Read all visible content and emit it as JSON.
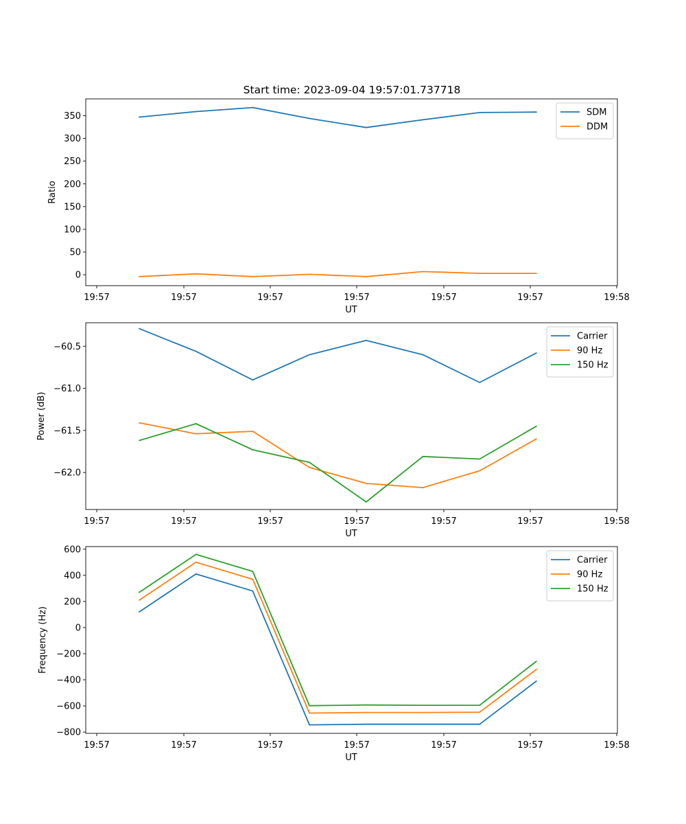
{
  "figure_title": "Start time: 2023-09-04 19:57:01.737718",
  "chart_data": [
    {
      "type": "line",
      "title": "Start time: 2023-09-04 19:57:01.737718",
      "xlabel": "UT",
      "ylabel": "Ratio",
      "x_tick_labels": [
        "19:57",
        "19:57",
        "19:57",
        "19:57",
        "19:57",
        "19:57",
        "19:58"
      ],
      "y_ticks": [
        0,
        50,
        100,
        150,
        200,
        250,
        300,
        350
      ],
      "y_tick_labels": [
        "0",
        "50",
        "100",
        "150",
        "200",
        "250",
        "300",
        "350"
      ],
      "ylim": [
        -24,
        387
      ],
      "x": [
        0,
        1,
        2,
        3,
        4,
        5,
        6,
        7
      ],
      "series": [
        {
          "name": "SDM",
          "color": "#1f77b4",
          "values": [
            347,
            359,
            368,
            344,
            324,
            341,
            357,
            358
          ]
        },
        {
          "name": "DDM",
          "color": "#ff7f0e",
          "values": [
            -4,
            2,
            -4,
            1,
            -4,
            7,
            3,
            3
          ]
        }
      ],
      "legend_position": "top-right"
    },
    {
      "type": "line",
      "title": "",
      "xlabel": "UT",
      "ylabel": "Power (dB)",
      "x_tick_labels": [
        "19:57",
        "19:57",
        "19:57",
        "19:57",
        "19:57",
        "19:57",
        "19:58"
      ],
      "y_ticks": [
        -62.0,
        -61.5,
        -61.0,
        -60.5
      ],
      "y_tick_labels": [
        "−62.0",
        "−61.5",
        "−61.0",
        "−60.5"
      ],
      "ylim": [
        -62.44,
        -60.22
      ],
      "x": [
        0,
        1,
        2,
        3,
        4,
        5,
        6,
        7
      ],
      "series": [
        {
          "name": "Carrier",
          "color": "#1f77b4",
          "values": [
            -60.29,
            -60.56,
            -60.9,
            -60.6,
            -60.43,
            -60.6,
            -60.93,
            -60.58
          ]
        },
        {
          "name": "90 Hz",
          "color": "#ff7f0e",
          "values": [
            -61.41,
            -61.54,
            -61.51,
            -61.94,
            -62.13,
            -62.18,
            -61.98,
            -61.6
          ]
        },
        {
          "name": "150 Hz",
          "color": "#2ca02c",
          "values": [
            -61.62,
            -61.42,
            -61.73,
            -61.88,
            -62.35,
            -61.81,
            -61.84,
            -61.45
          ]
        }
      ],
      "legend_position": "top-right"
    },
    {
      "type": "line",
      "title": "",
      "xlabel": "UT",
      "ylabel": "Frequency (Hz)",
      "x_tick_labels": [
        "19:57",
        "19:57",
        "19:57",
        "19:57",
        "19:57",
        "19:57",
        "19:58"
      ],
      "y_ticks": [
        -800,
        -600,
        -400,
        -200,
        0,
        200,
        400,
        600
      ],
      "y_tick_labels": [
        "−800",
        "−600",
        "−400",
        "−200",
        "0",
        "200",
        "400",
        "600"
      ],
      "ylim": [
        -810,
        620
      ],
      "x": [
        0,
        1,
        2,
        3,
        4,
        5,
        6,
        7
      ],
      "series": [
        {
          "name": "Carrier",
          "color": "#1f77b4",
          "values": [
            120,
            410,
            280,
            -745,
            -740,
            -740,
            -740,
            -410
          ]
        },
        {
          "name": "90 Hz",
          "color": "#ff7f0e",
          "values": [
            210,
            500,
            370,
            -655,
            -650,
            -650,
            -648,
            -320
          ]
        },
        {
          "name": "150 Hz",
          "color": "#2ca02c",
          "values": [
            270,
            560,
            430,
            -598,
            -593,
            -595,
            -595,
            -258
          ]
        }
      ],
      "legend_position": "top-right"
    }
  ]
}
